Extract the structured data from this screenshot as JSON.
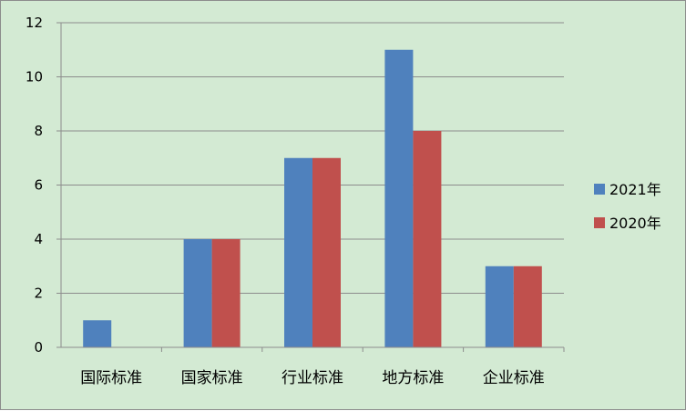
{
  "chart_data": {
    "type": "bar",
    "title": "",
    "xlabel": "",
    "ylabel": "",
    "categories": [
      "国际标准",
      "国家标准",
      "行业标准",
      "地方标准",
      "企业标准"
    ],
    "series": [
      {
        "name": "2021年",
        "values": [
          1,
          4,
          7,
          11,
          3
        ],
        "color": "#4f81bd"
      },
      {
        "name": "2020年",
        "values": [
          0,
          4,
          7,
          8,
          3
        ],
        "color": "#c0504d"
      }
    ],
    "ylim": [
      0,
      12
    ],
    "yticks": [
      0,
      2,
      4,
      6,
      8,
      10,
      12
    ],
    "grid": true,
    "legend_position": "right",
    "background_color": "#d3ead3",
    "gridline_color": "#8c8c8c"
  }
}
